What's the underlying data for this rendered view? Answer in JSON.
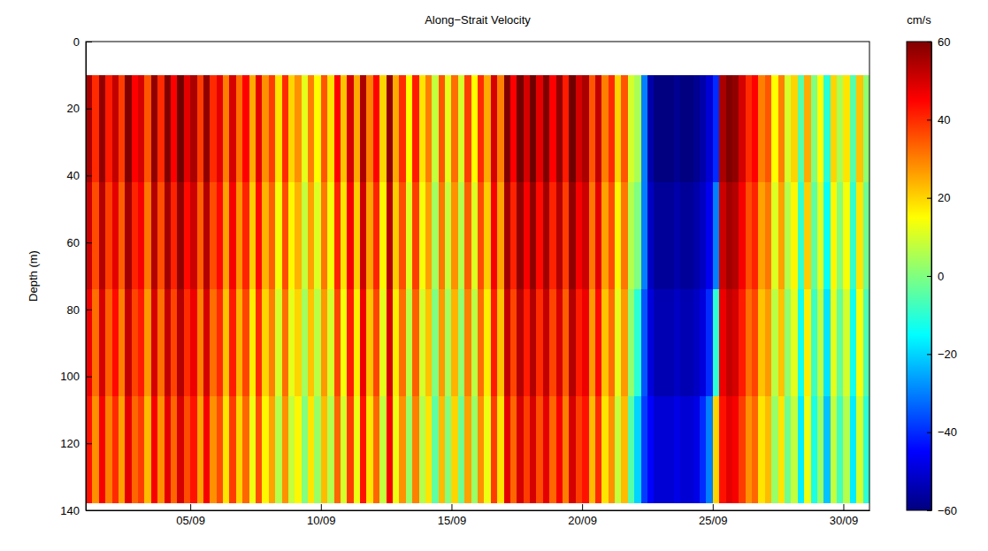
{
  "chart_data": {
    "type": "heatmap",
    "title": "Along−Strait Velocity",
    "y_label": "Depth (m)",
    "colorbar_label": "cm/s",
    "xlim": [
      1,
      31
    ],
    "xticks": [
      {
        "value": 5,
        "label": "05/09"
      },
      {
        "value": 10,
        "label": "10/09"
      },
      {
        "value": 15,
        "label": "15/09"
      },
      {
        "value": 20,
        "label": "20/09"
      },
      {
        "value": 25,
        "label": "25/09"
      },
      {
        "value": 30,
        "label": "30/09"
      }
    ],
    "ylim": [
      0,
      140
    ],
    "yticks": [
      0,
      20,
      40,
      60,
      80,
      100,
      120,
      140
    ],
    "colorbar_range": [
      -60,
      60
    ],
    "colorbar_ticks": [
      {
        "value": -60,
        "label": "−60"
      },
      {
        "value": -40,
        "label": "−40"
      },
      {
        "value": -20,
        "label": "−20"
      },
      0,
      20,
      40,
      60
    ],
    "x": [
      1.125,
      1.375,
      1.625,
      1.875,
      2.125,
      2.375,
      2.625,
      2.875,
      3.125,
      3.375,
      3.625,
      3.875,
      4.125,
      4.375,
      4.625,
      4.875,
      5.125,
      5.375,
      5.625,
      5.875,
      6.125,
      6.375,
      6.625,
      6.875,
      7.125,
      7.375,
      7.625,
      7.875,
      8.125,
      8.375,
      8.625,
      8.875,
      9.125,
      9.375,
      9.625,
      9.875,
      10.125,
      10.375,
      10.625,
      10.875,
      11.125,
      11.375,
      11.625,
      11.875,
      12.125,
      12.375,
      12.625,
      12.875,
      13.125,
      13.375,
      13.625,
      13.875,
      14.125,
      14.375,
      14.625,
      14.875,
      15.125,
      15.375,
      15.625,
      15.875,
      16.125,
      16.375,
      16.625,
      16.875,
      17.125,
      17.375,
      17.625,
      17.875,
      18.125,
      18.375,
      18.625,
      18.875,
      19.125,
      19.375,
      19.625,
      19.875,
      20.125,
      20.375,
      20.625,
      20.875,
      21.125,
      21.375,
      21.625,
      21.875,
      22.125,
      22.375,
      22.625,
      22.875,
      23.125,
      23.375,
      23.625,
      23.875,
      24.125,
      24.375,
      24.625,
      24.875,
      25.125,
      25.375,
      25.625,
      25.875,
      26.125,
      26.375,
      26.625,
      26.875,
      27.125,
      27.375,
      27.625,
      27.875,
      28.125,
      28.375,
      28.625,
      28.875,
      29.125,
      29.375,
      29.625,
      29.875,
      30.125,
      30.375,
      30.625,
      30.875
    ],
    "y": [
      26,
      58,
      90,
      122
    ],
    "z": [
      [
        55,
        40,
        58,
        42,
        52,
        38,
        60,
        45,
        50,
        35,
        58,
        40,
        60,
        45,
        62,
        48,
        55,
        38,
        58,
        40,
        48,
        30,
        50,
        32,
        45,
        25,
        48,
        28,
        38,
        18,
        40,
        20,
        28,
        12,
        30,
        15,
        35,
        18,
        45,
        22,
        50,
        25,
        55,
        30,
        45,
        20,
        58,
        25,
        40,
        15,
        42,
        18,
        30,
        8,
        35,
        12,
        32,
        10,
        38,
        15,
        40,
        25,
        50,
        30,
        60,
        45,
        62,
        50,
        62,
        48,
        60,
        45,
        58,
        42,
        62,
        50,
        55,
        35,
        52,
        30,
        40,
        20,
        35,
        10,
        5,
        -30,
        -55,
        -60,
        -60,
        -60,
        -58,
        -60,
        -60,
        -58,
        -55,
        -50,
        -40,
        55,
        60,
        58,
        50,
        40,
        45,
        30,
        35,
        15,
        30,
        10,
        20,
        -5,
        25,
        0,
        15,
        -10,
        20,
        5,
        18,
        -5,
        22,
        2
      ],
      [
        51,
        36,
        54,
        38,
        48,
        34,
        56,
        41,
        46,
        31,
        54,
        36,
        56,
        41,
        58,
        44,
        51,
        34,
        54,
        36,
        44,
        26,
        46,
        28,
        41,
        21,
        44,
        24,
        34,
        14,
        36,
        16,
        24,
        8,
        26,
        11,
        31,
        14,
        41,
        18,
        46,
        21,
        51,
        26,
        41,
        16,
        54,
        21,
        36,
        11,
        38,
        14,
        26,
        4,
        31,
        8,
        28,
        6,
        34,
        11,
        36,
        21,
        46,
        26,
        56,
        41,
        58,
        46,
        58,
        44,
        56,
        41,
        54,
        38,
        58,
        46,
        51,
        31,
        48,
        26,
        36,
        16,
        31,
        6,
        0,
        -30,
        -52,
        -57,
        -57,
        -57,
        -55,
        -57,
        -57,
        -55,
        -52,
        -47,
        -30,
        51,
        56,
        54,
        46,
        36,
        41,
        26,
        31,
        11,
        26,
        6,
        16,
        -9,
        21,
        -4,
        11,
        -14,
        16,
        1,
        14,
        -9,
        18,
        -2
      ],
      [
        47,
        32,
        50,
        34,
        44,
        30,
        52,
        37,
        42,
        27,
        50,
        32,
        52,
        37,
        54,
        40,
        47,
        30,
        50,
        32,
        40,
        22,
        42,
        24,
        37,
        17,
        40,
        20,
        30,
        10,
        32,
        12,
        20,
        4,
        22,
        7,
        27,
        10,
        37,
        14,
        42,
        17,
        47,
        22,
        37,
        12,
        50,
        17,
        32,
        7,
        34,
        10,
        22,
        0,
        27,
        4,
        24,
        2,
        30,
        7,
        32,
        17,
        42,
        22,
        52,
        37,
        54,
        42,
        54,
        40,
        52,
        37,
        50,
        34,
        54,
        42,
        47,
        27,
        44,
        22,
        32,
        12,
        27,
        2,
        -10,
        -35,
        -49,
        -54,
        -54,
        -54,
        -52,
        -54,
        -54,
        -52,
        -49,
        -40,
        -10,
        47,
        52,
        50,
        42,
        32,
        37,
        22,
        27,
        7,
        22,
        2,
        12,
        -13,
        17,
        -8,
        7,
        -18,
        12,
        -3,
        10,
        -13,
        14,
        -6
      ],
      [
        43,
        28,
        46,
        30,
        40,
        26,
        48,
        33,
        38,
        23,
        46,
        28,
        48,
        33,
        50,
        36,
        43,
        26,
        46,
        28,
        36,
        18,
        38,
        20,
        33,
        13,
        36,
        16,
        26,
        6,
        28,
        8,
        16,
        0,
        18,
        3,
        23,
        6,
        33,
        10,
        38,
        13,
        43,
        18,
        33,
        8,
        46,
        13,
        28,
        3,
        30,
        6,
        18,
        -4,
        23,
        0,
        20,
        -2,
        26,
        3,
        28,
        13,
        38,
        18,
        48,
        33,
        50,
        38,
        50,
        36,
        48,
        33,
        46,
        30,
        50,
        38,
        43,
        23,
        40,
        18,
        28,
        8,
        23,
        -5,
        -20,
        -38,
        -45,
        -50,
        -50,
        -50,
        -48,
        -50,
        -50,
        -48,
        -40,
        -30,
        20,
        43,
        48,
        46,
        38,
        28,
        33,
        18,
        23,
        3,
        18,
        -2,
        8,
        -17,
        13,
        -12,
        3,
        -22,
        8,
        -7,
        6,
        -17,
        10,
        -10
      ]
    ]
  }
}
